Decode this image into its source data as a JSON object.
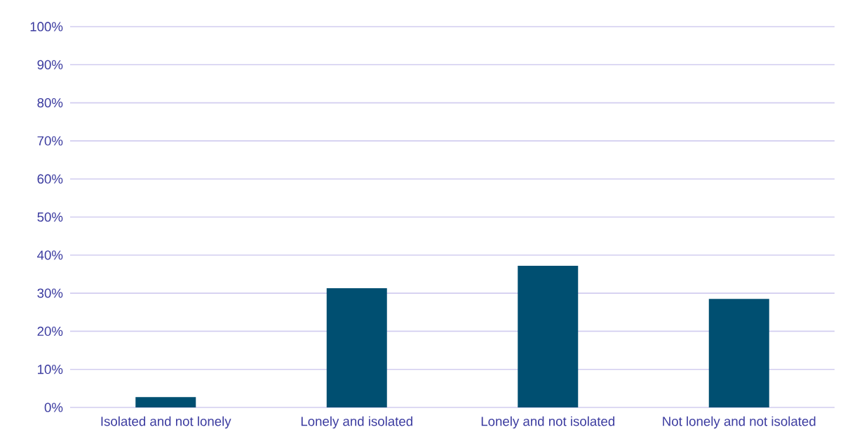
{
  "chart_data": {
    "type": "bar",
    "categories": [
      "Isolated and not lonely",
      "Lonely and isolated",
      "Lonely and not isolated",
      "Not lonely and not isolated"
    ],
    "values": [
      2.7,
      31.3,
      37.2,
      28.5
    ],
    "color": "#004f71",
    "ylim": [
      0,
      100
    ],
    "yticks": [
      {
        "value": 0,
        "label": "0%"
      },
      {
        "value": 10,
        "label": "10%"
      },
      {
        "value": 20,
        "label": "20%"
      },
      {
        "value": 30,
        "label": "30%"
      },
      {
        "value": 40,
        "label": "40%"
      },
      {
        "value": 50,
        "label": "50%"
      },
      {
        "value": 60,
        "label": "60%"
      },
      {
        "value": 70,
        "label": "70%"
      },
      {
        "value": 80,
        "label": "80%"
      },
      {
        "value": 90,
        "label": "90%"
      },
      {
        "value": 100,
        "label": "100%"
      }
    ],
    "grid": "y"
  }
}
